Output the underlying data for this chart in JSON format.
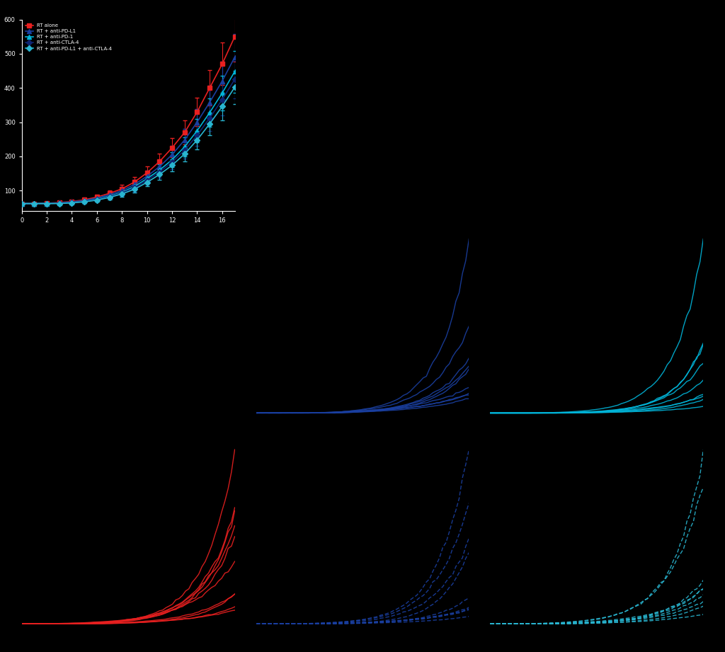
{
  "bg_color": "#000000",
  "fig_width": 10.24,
  "fig_height": 9.21,
  "mean_series": {
    "days": [
      0,
      1,
      2,
      3,
      4,
      5,
      6,
      7,
      8,
      9,
      10,
      11,
      12,
      13,
      14,
      15,
      16,
      17
    ],
    "series": [
      {
        "label": "RT alone",
        "color": "#e82020",
        "marker": "s",
        "markersize": 4,
        "values": [
          62,
          62,
          63,
          65,
          68,
          73,
          81,
          92,
          105,
          125,
          152,
          185,
          225,
          270,
          330,
          400,
          470,
          550
        ],
        "err": [
          3,
          3,
          4,
          4,
          5,
          6,
          7,
          9,
          11,
          14,
          18,
          22,
          28,
          35,
          42,
          52,
          62,
          72
        ]
      },
      {
        "label": "RT + anti-PD-L1",
        "color": "#1a3fa0",
        "marker": "^",
        "markersize": 4,
        "values": [
          62,
          62,
          63,
          64,
          67,
          71,
          78,
          88,
          100,
          118,
          142,
          170,
          205,
          248,
          300,
          358,
          420,
          490
        ],
        "err": [
          3,
          3,
          3,
          4,
          5,
          6,
          7,
          9,
          10,
          13,
          16,
          20,
          25,
          32,
          38,
          48,
          58,
          68
        ]
      },
      {
        "label": "RT + anti-PD-1",
        "color": "#00b4d8",
        "marker": "^",
        "markersize": 4,
        "values": [
          62,
          62,
          62,
          63,
          65,
          69,
          75,
          84,
          95,
          112,
          135,
          160,
          190,
          228,
          275,
          328,
          385,
          448
        ],
        "err": [
          3,
          3,
          3,
          3,
          4,
          5,
          6,
          8,
          9,
          11,
          14,
          17,
          22,
          28,
          34,
          42,
          51,
          61
        ]
      },
      {
        "label": "RT + anti-CTLA-4",
        "color": "#0d2472",
        "marker": "D",
        "markersize": 4,
        "values": [
          62,
          62,
          62,
          63,
          65,
          68,
          74,
          82,
          93,
          108,
          130,
          154,
          183,
          218,
          262,
          312,
          366,
          425
        ],
        "err": [
          3,
          3,
          3,
          3,
          4,
          5,
          6,
          7,
          9,
          11,
          13,
          16,
          20,
          25,
          31,
          38,
          46,
          55
        ]
      },
      {
        "label": "RT + anti-PD-L1 + anti-CTLA-4",
        "color": "#29b5d0",
        "marker": "D",
        "markersize": 4,
        "values": [
          62,
          62,
          62,
          62,
          64,
          67,
          72,
          80,
          90,
          104,
          124,
          147,
          174,
          207,
          248,
          295,
          346,
          402
        ],
        "err": [
          3,
          3,
          3,
          3,
          3,
          4,
          5,
          7,
          8,
          10,
          12,
          15,
          18,
          22,
          27,
          33,
          40,
          49
        ]
      }
    ],
    "xlabel": "",
    "ylabel": "",
    "xlim": [
      0,
      17
    ],
    "ylim": [
      40,
      600
    ]
  },
  "legend_labels": [
    "RT alone",
    "RT + anti-PD-L1",
    "RT + anti-PD-1",
    "RT + anti-CTLA-4",
    "RT + anti-PD-L1 + anti-CTLA-4"
  ],
  "legend_colors": [
    "#e82020",
    "#1a3fa0",
    "#00b4d8",
    "#0d2472",
    "#29b5d0"
  ],
  "legend_markers": [
    "s",
    "^",
    "^",
    "D",
    "D"
  ],
  "panels": [
    {
      "row": 1,
      "col": 1,
      "color": "#1a3fa0",
      "dashed": false,
      "n": 9,
      "seed": 10,
      "label": ""
    },
    {
      "row": 1,
      "col": 2,
      "color": "#00b4d8",
      "dashed": false,
      "n": 9,
      "seed": 20,
      "label": ""
    },
    {
      "row": 2,
      "col": 0,
      "color": "#e82020",
      "dashed": false,
      "n": 10,
      "seed": 30,
      "label": ""
    },
    {
      "row": 2,
      "col": 1,
      "color": "#1a3fa0",
      "dashed": true,
      "n": 9,
      "seed": 40,
      "label": ""
    },
    {
      "row": 2,
      "col": 2,
      "color": "#29b5d0",
      "dashed": true,
      "n": 9,
      "seed": 50,
      "label": ""
    }
  ]
}
